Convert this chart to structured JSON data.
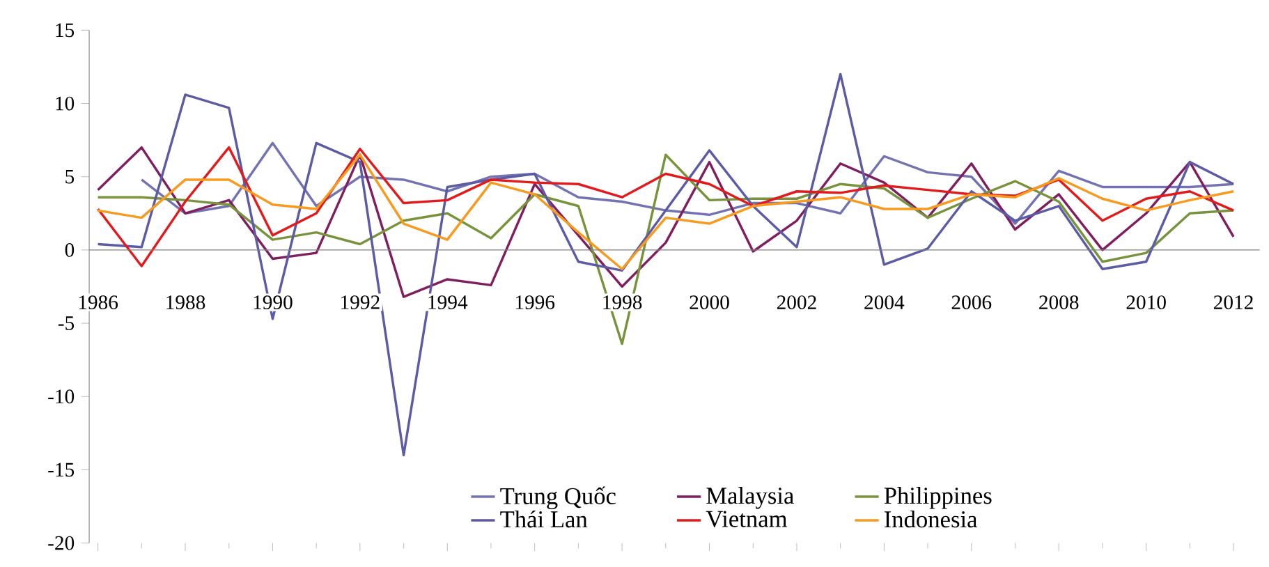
{
  "chart_data": {
    "type": "line",
    "x": [
      1986,
      1987,
      1988,
      1989,
      1990,
      1991,
      1992,
      1993,
      1994,
      1995,
      1996,
      1997,
      1998,
      1999,
      2000,
      2001,
      2002,
      2003,
      2004,
      2005,
      2006,
      2007,
      2008,
      2009,
      2010,
      2011,
      2012
    ],
    "series": [
      {
        "name": "Trung Quốc",
        "color": "#7373b3",
        "values": [
          null,
          4.8,
          2.5,
          3.0,
          7.3,
          3.0,
          5.0,
          4.8,
          4.0,
          5.0,
          5.2,
          3.6,
          3.3,
          2.7,
          2.4,
          3.2,
          3.2,
          2.5,
          6.4,
          5.3,
          5.0,
          1.8,
          5.4,
          4.3,
          4.3,
          4.3,
          4.5
        ]
      },
      {
        "name": "Malaysia",
        "color": "#7f1f5f",
        "values": [
          4.1,
          7.0,
          2.5,
          3.4,
          -0.6,
          -0.2,
          6.5,
          -3.2,
          -2.0,
          -2.4,
          4.5,
          1.0,
          -2.5,
          0.5,
          6.0,
          -0.1,
          2.0,
          5.9,
          4.6,
          2.2,
          5.9,
          1.4,
          3.8,
          0.0,
          2.5,
          6.0,
          0.9
        ]
      },
      {
        "name": "Philippines",
        "color": "#77933c",
        "values": [
          3.6,
          3.6,
          3.4,
          3.1,
          0.7,
          1.2,
          0.4,
          2.0,
          2.5,
          0.8,
          3.8,
          3.0,
          -6.4,
          6.5,
          3.4,
          3.5,
          3.5,
          4.5,
          4.2,
          2.2,
          3.5,
          4.7,
          3.3,
          -0.8,
          -0.2,
          2.5,
          2.7
        ]
      },
      {
        "name": "Thái Lan",
        "color": "#5c5ca6",
        "values": [
          0.4,
          0.2,
          10.6,
          9.7,
          -4.7,
          7.3,
          6.0,
          -14.0,
          4.3,
          4.8,
          5.2,
          -0.8,
          -1.4,
          2.7,
          6.8,
          3.0,
          0.2,
          12.0,
          -1.0,
          0.1,
          4.0,
          2.0,
          3.0,
          -1.3,
          -0.8,
          6.0,
          4.5
        ]
      },
      {
        "name": "Vietnam",
        "color": "#e31a1c",
        "values": [
          2.8,
          -1.1,
          3.3,
          7.0,
          1.0,
          2.5,
          6.9,
          3.2,
          3.4,
          4.8,
          4.6,
          4.5,
          3.6,
          5.2,
          4.5,
          3.0,
          4.0,
          3.9,
          4.4,
          4.1,
          3.8,
          3.7,
          4.8,
          2.0,
          3.5,
          4.0,
          2.7
        ]
      },
      {
        "name": "Indonesia",
        "color": "#f79a1e",
        "values": [
          2.7,
          2.2,
          4.8,
          4.8,
          3.1,
          2.8,
          6.5,
          1.8,
          0.7,
          4.6,
          3.8,
          1.2,
          -1.3,
          2.2,
          1.8,
          3.0,
          3.3,
          3.6,
          2.8,
          2.8,
          3.8,
          3.6,
          4.9,
          3.5,
          2.7,
          3.4,
          4.0
        ]
      }
    ],
    "xlim": [
      1985.8,
      2012.6
    ],
    "xticks": [
      1986,
      1988,
      1990,
      1992,
      1994,
      1996,
      1998,
      2000,
      2002,
      2004,
      2006,
      2008,
      2010,
      2012
    ],
    "ylim": [
      -20,
      15
    ],
    "yticks": [
      -20,
      -15,
      -10,
      -5,
      0,
      5,
      10,
      15
    ],
    "grid": false,
    "legend": "bottom",
    "marker": "none",
    "line_style": "solid"
  }
}
